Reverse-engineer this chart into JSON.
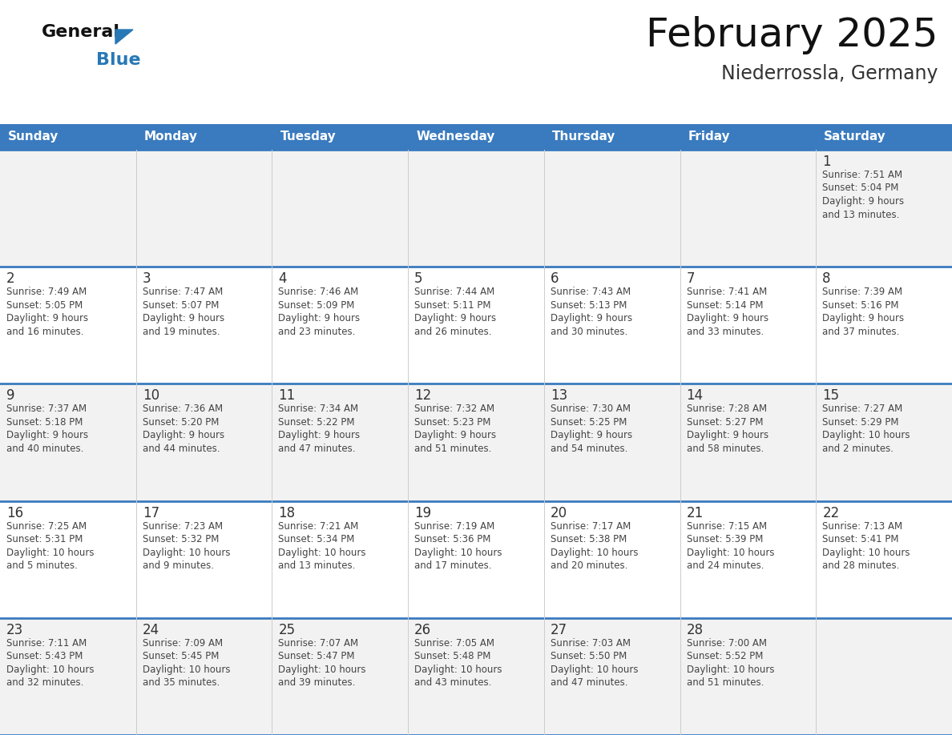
{
  "title": "February 2025",
  "subtitle": "Niederrossla, Germany",
  "header_bg": "#3a7bbf",
  "header_text_color": "#ffffff",
  "day_names": [
    "Sunday",
    "Monday",
    "Tuesday",
    "Wednesday",
    "Thursday",
    "Friday",
    "Saturday"
  ],
  "row_bg_even": "#f2f2f2",
  "row_bg_odd": "#ffffff",
  "separator_color": "#3a7bbf",
  "text_color": "#444444",
  "day_num_color": "#333333",
  "logo_general_color": "#111111",
  "logo_blue_color": "#2878b5",
  "calendar_data": [
    {
      "day": 1,
      "col": 6,
      "row": 0,
      "sunrise": "7:51 AM",
      "sunset": "5:04 PM",
      "daylight": "9 hours and 13 minutes"
    },
    {
      "day": 2,
      "col": 0,
      "row": 1,
      "sunrise": "7:49 AM",
      "sunset": "5:05 PM",
      "daylight": "9 hours and 16 minutes"
    },
    {
      "day": 3,
      "col": 1,
      "row": 1,
      "sunrise": "7:47 AM",
      "sunset": "5:07 PM",
      "daylight": "9 hours and 19 minutes"
    },
    {
      "day": 4,
      "col": 2,
      "row": 1,
      "sunrise": "7:46 AM",
      "sunset": "5:09 PM",
      "daylight": "9 hours and 23 minutes"
    },
    {
      "day": 5,
      "col": 3,
      "row": 1,
      "sunrise": "7:44 AM",
      "sunset": "5:11 PM",
      "daylight": "9 hours and 26 minutes"
    },
    {
      "day": 6,
      "col": 4,
      "row": 1,
      "sunrise": "7:43 AM",
      "sunset": "5:13 PM",
      "daylight": "9 hours and 30 minutes"
    },
    {
      "day": 7,
      "col": 5,
      "row": 1,
      "sunrise": "7:41 AM",
      "sunset": "5:14 PM",
      "daylight": "9 hours and 33 minutes"
    },
    {
      "day": 8,
      "col": 6,
      "row": 1,
      "sunrise": "7:39 AM",
      "sunset": "5:16 PM",
      "daylight": "9 hours and 37 minutes"
    },
    {
      "day": 9,
      "col": 0,
      "row": 2,
      "sunrise": "7:37 AM",
      "sunset": "5:18 PM",
      "daylight": "9 hours and 40 minutes"
    },
    {
      "day": 10,
      "col": 1,
      "row": 2,
      "sunrise": "7:36 AM",
      "sunset": "5:20 PM",
      "daylight": "9 hours and 44 minutes"
    },
    {
      "day": 11,
      "col": 2,
      "row": 2,
      "sunrise": "7:34 AM",
      "sunset": "5:22 PM",
      "daylight": "9 hours and 47 minutes"
    },
    {
      "day": 12,
      "col": 3,
      "row": 2,
      "sunrise": "7:32 AM",
      "sunset": "5:23 PM",
      "daylight": "9 hours and 51 minutes"
    },
    {
      "day": 13,
      "col": 4,
      "row": 2,
      "sunrise": "7:30 AM",
      "sunset": "5:25 PM",
      "daylight": "9 hours and 54 minutes"
    },
    {
      "day": 14,
      "col": 5,
      "row": 2,
      "sunrise": "7:28 AM",
      "sunset": "5:27 PM",
      "daylight": "9 hours and 58 minutes"
    },
    {
      "day": 15,
      "col": 6,
      "row": 2,
      "sunrise": "7:27 AM",
      "sunset": "5:29 PM",
      "daylight": "10 hours and 2 minutes"
    },
    {
      "day": 16,
      "col": 0,
      "row": 3,
      "sunrise": "7:25 AM",
      "sunset": "5:31 PM",
      "daylight": "10 hours and 5 minutes"
    },
    {
      "day": 17,
      "col": 1,
      "row": 3,
      "sunrise": "7:23 AM",
      "sunset": "5:32 PM",
      "daylight": "10 hours and 9 minutes"
    },
    {
      "day": 18,
      "col": 2,
      "row": 3,
      "sunrise": "7:21 AM",
      "sunset": "5:34 PM",
      "daylight": "10 hours and 13 minutes"
    },
    {
      "day": 19,
      "col": 3,
      "row": 3,
      "sunrise": "7:19 AM",
      "sunset": "5:36 PM",
      "daylight": "10 hours and 17 minutes"
    },
    {
      "day": 20,
      "col": 4,
      "row": 3,
      "sunrise": "7:17 AM",
      "sunset": "5:38 PM",
      "daylight": "10 hours and 20 minutes"
    },
    {
      "day": 21,
      "col": 5,
      "row": 3,
      "sunrise": "7:15 AM",
      "sunset": "5:39 PM",
      "daylight": "10 hours and 24 minutes"
    },
    {
      "day": 22,
      "col": 6,
      "row": 3,
      "sunrise": "7:13 AM",
      "sunset": "5:41 PM",
      "daylight": "10 hours and 28 minutes"
    },
    {
      "day": 23,
      "col": 0,
      "row": 4,
      "sunrise": "7:11 AM",
      "sunset": "5:43 PM",
      "daylight": "10 hours and 32 minutes"
    },
    {
      "day": 24,
      "col": 1,
      "row": 4,
      "sunrise": "7:09 AM",
      "sunset": "5:45 PM",
      "daylight": "10 hours and 35 minutes"
    },
    {
      "day": 25,
      "col": 2,
      "row": 4,
      "sunrise": "7:07 AM",
      "sunset": "5:47 PM",
      "daylight": "10 hours and 39 minutes"
    },
    {
      "day": 26,
      "col": 3,
      "row": 4,
      "sunrise": "7:05 AM",
      "sunset": "5:48 PM",
      "daylight": "10 hours and 43 minutes"
    },
    {
      "day": 27,
      "col": 4,
      "row": 4,
      "sunrise": "7:03 AM",
      "sunset": "5:50 PM",
      "daylight": "10 hours and 47 minutes"
    },
    {
      "day": 28,
      "col": 5,
      "row": 4,
      "sunrise": "7:00 AM",
      "sunset": "5:52 PM",
      "daylight": "10 hours and 51 minutes"
    }
  ]
}
